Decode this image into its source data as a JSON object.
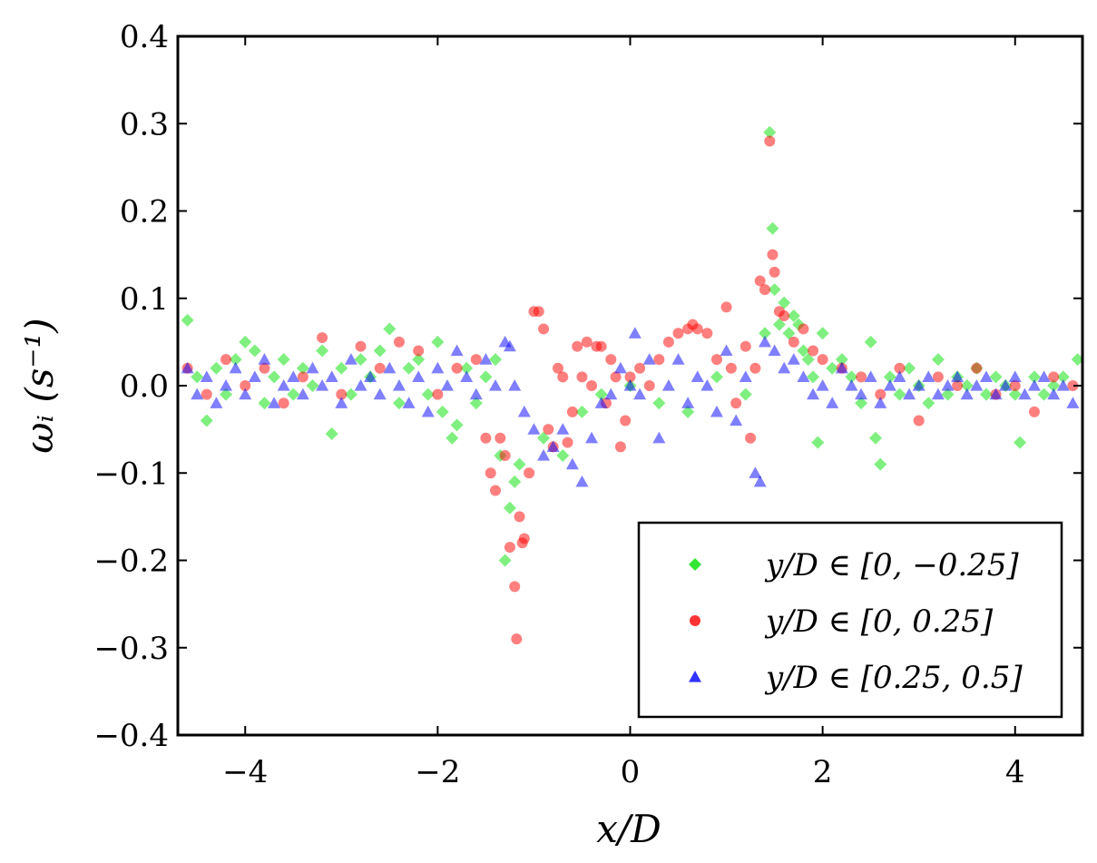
{
  "chart_data": {
    "type": "scatter",
    "title": "",
    "xlabel": "x/D",
    "ylabel": "ωᵢ (s⁻¹)",
    "xlim": [
      -4.7,
      4.7
    ],
    "ylim": [
      -0.4,
      0.4
    ],
    "xticks": [
      -4,
      -2,
      0,
      2,
      4
    ],
    "xtick_labels": [
      "−4",
      "−2",
      "0",
      "2",
      "4"
    ],
    "yticks": [
      -0.4,
      -0.3,
      -0.2,
      -0.1,
      0.0,
      0.1,
      0.2,
      0.3,
      0.4
    ],
    "ytick_labels": [
      "−0.4",
      "−0.3",
      "−0.2",
      "−0.1",
      "0.0",
      "0.1",
      "0.2",
      "0.3",
      "0.4"
    ],
    "grid": false,
    "legend_position": "bottom-right",
    "series": [
      {
        "name": "y/D ∈ [0, −0.25]",
        "marker": "diamond",
        "color": "#00e000",
        "points": [
          [
            -4.6,
            0.075
          ],
          [
            -4.5,
            0.01
          ],
          [
            -4.4,
            -0.04
          ],
          [
            -4.3,
            0.02
          ],
          [
            -4.2,
            -0.01
          ],
          [
            -4.1,
            0.03
          ],
          [
            -4.0,
            0.05
          ],
          [
            -3.9,
            0.04
          ],
          [
            -3.8,
            -0.02
          ],
          [
            -3.7,
            0.01
          ],
          [
            -3.6,
            0.03
          ],
          [
            -3.5,
            -0.01
          ],
          [
            -3.4,
            0.02
          ],
          [
            -3.3,
            0.0
          ],
          [
            -3.2,
            0.04
          ],
          [
            -3.1,
            -0.055
          ],
          [
            -3.0,
            0.02
          ],
          [
            -2.9,
            -0.01
          ],
          [
            -2.8,
            0.03
          ],
          [
            -2.7,
            0.01
          ],
          [
            -2.6,
            0.04
          ],
          [
            -2.5,
            0.065
          ],
          [
            -2.4,
            -0.02
          ],
          [
            -2.3,
            0.02
          ],
          [
            -2.2,
            0.03
          ],
          [
            -2.1,
            -0.01
          ],
          [
            -2.0,
            0.05
          ],
          [
            -1.95,
            -0.03
          ],
          [
            -1.85,
            -0.06
          ],
          [
            -1.8,
            -0.045
          ],
          [
            -1.7,
            0.02
          ],
          [
            -1.6,
            -0.02
          ],
          [
            -1.5,
            0.01
          ],
          [
            -1.4,
            0.03
          ],
          [
            -1.35,
            -0.08
          ],
          [
            -1.3,
            -0.2
          ],
          [
            -1.25,
            -0.14
          ],
          [
            -1.2,
            -0.11
          ],
          [
            -1.15,
            -0.09
          ],
          [
            -0.9,
            -0.06
          ],
          [
            -0.7,
            -0.08
          ],
          [
            -0.5,
            -0.03
          ],
          [
            -0.3,
            -0.01
          ],
          [
            0.0,
            0.0
          ],
          [
            0.3,
            -0.02
          ],
          [
            0.6,
            -0.03
          ],
          [
            0.9,
            0.01
          ],
          [
            1.2,
            -0.01
          ],
          [
            1.4,
            0.06
          ],
          [
            1.45,
            0.29
          ],
          [
            1.48,
            0.18
          ],
          [
            1.5,
            0.11
          ],
          [
            1.55,
            0.07
          ],
          [
            1.6,
            0.095
          ],
          [
            1.65,
            0.06
          ],
          [
            1.7,
            0.08
          ],
          [
            1.75,
            0.07
          ],
          [
            1.8,
            0.04
          ],
          [
            1.85,
            0.03
          ],
          [
            1.9,
            0.01
          ],
          [
            1.95,
            -0.065
          ],
          [
            2.0,
            0.06
          ],
          [
            2.1,
            0.02
          ],
          [
            2.2,
            0.03
          ],
          [
            2.3,
            0.01
          ],
          [
            2.4,
            -0.02
          ],
          [
            2.5,
            0.05
          ],
          [
            2.55,
            -0.06
          ],
          [
            2.6,
            -0.09
          ],
          [
            2.7,
            0.01
          ],
          [
            2.8,
            -0.01
          ],
          [
            2.9,
            0.02
          ],
          [
            3.0,
            0.0
          ],
          [
            3.1,
            -0.02
          ],
          [
            3.2,
            0.03
          ],
          [
            3.3,
            -0.01
          ],
          [
            3.4,
            0.01
          ],
          [
            3.5,
            0.0
          ],
          [
            3.6,
            0.02
          ],
          [
            3.7,
            -0.01
          ],
          [
            3.8,
            0.01
          ],
          [
            3.9,
            0.0
          ],
          [
            4.0,
            -0.01
          ],
          [
            4.05,
            -0.065
          ],
          [
            4.2,
            0.01
          ],
          [
            4.3,
            -0.01
          ],
          [
            4.4,
            0.0
          ],
          [
            4.5,
            0.01
          ],
          [
            4.65,
            0.03
          ]
        ]
      },
      {
        "name": "y/D ∈ [0, 0.25]",
        "marker": "circle",
        "color": "#ff0000",
        "points": [
          [
            -4.6,
            0.02
          ],
          [
            -4.4,
            -0.01
          ],
          [
            -4.2,
            0.03
          ],
          [
            -4.0,
            0.0
          ],
          [
            -3.8,
            0.02
          ],
          [
            -3.6,
            -0.02
          ],
          [
            -3.4,
            0.01
          ],
          [
            -3.2,
            0.055
          ],
          [
            -3.0,
            -0.01
          ],
          [
            -2.8,
            0.045
          ],
          [
            -2.6,
            0.02
          ],
          [
            -2.4,
            0.05
          ],
          [
            -2.2,
            0.04
          ],
          [
            -2.0,
            -0.01
          ],
          [
            -1.8,
            0.02
          ],
          [
            -1.6,
            0.03
          ],
          [
            -1.5,
            -0.06
          ],
          [
            -1.45,
            -0.1
          ],
          [
            -1.4,
            -0.12
          ],
          [
            -1.35,
            -0.06
          ],
          [
            -1.3,
            -0.08
          ],
          [
            -1.25,
            -0.185
          ],
          [
            -1.2,
            -0.23
          ],
          [
            -1.18,
            -0.29
          ],
          [
            -1.15,
            -0.15
          ],
          [
            -1.12,
            -0.18
          ],
          [
            -1.1,
            -0.175
          ],
          [
            -1.05,
            -0.1
          ],
          [
            -1.0,
            0.085
          ],
          [
            -0.95,
            0.085
          ],
          [
            -0.9,
            0.065
          ],
          [
            -0.85,
            -0.05
          ],
          [
            -0.8,
            -0.07
          ],
          [
            -0.75,
            0.02
          ],
          [
            -0.7,
            0.01
          ],
          [
            -0.65,
            -0.065
          ],
          [
            -0.6,
            -0.03
          ],
          [
            -0.55,
            0.045
          ],
          [
            -0.5,
            0.01
          ],
          [
            -0.45,
            0.05
          ],
          [
            -0.4,
            0.0
          ],
          [
            -0.35,
            0.045
          ],
          [
            -0.3,
            0.045
          ],
          [
            -0.25,
            -0.02
          ],
          [
            -0.2,
            0.03
          ],
          [
            -0.15,
            0.01
          ],
          [
            -0.1,
            -0.07
          ],
          [
            -0.05,
            -0.04
          ],
          [
            0.0,
            0.01
          ],
          [
            0.1,
            0.02
          ],
          [
            0.2,
            0.0
          ],
          [
            0.3,
            0.03
          ],
          [
            0.4,
            0.05
          ],
          [
            0.5,
            0.06
          ],
          [
            0.6,
            0.065
          ],
          [
            0.65,
            0.07
          ],
          [
            0.7,
            0.065
          ],
          [
            0.8,
            0.06
          ],
          [
            0.9,
            0.03
          ],
          [
            1.0,
            0.09
          ],
          [
            1.05,
            0.02
          ],
          [
            1.1,
            -0.02
          ],
          [
            1.2,
            0.045
          ],
          [
            1.25,
            -0.06
          ],
          [
            1.3,
            0.02
          ],
          [
            1.35,
            0.12
          ],
          [
            1.4,
            0.11
          ],
          [
            1.45,
            0.28
          ],
          [
            1.48,
            0.15
          ],
          [
            1.5,
            0.13
          ],
          [
            1.55,
            0.085
          ],
          [
            1.6,
            0.08
          ],
          [
            1.7,
            0.05
          ],
          [
            1.8,
            0.065
          ],
          [
            1.9,
            0.04
          ],
          [
            2.0,
            0.03
          ],
          [
            2.2,
            0.02
          ],
          [
            2.4,
            0.01
          ],
          [
            2.6,
            -0.01
          ],
          [
            2.8,
            0.02
          ],
          [
            3.0,
            -0.04
          ],
          [
            3.2,
            0.01
          ],
          [
            3.4,
            0.0
          ],
          [
            3.6,
            0.02
          ],
          [
            3.8,
            -0.01
          ],
          [
            4.0,
            0.0
          ],
          [
            4.2,
            -0.03
          ],
          [
            4.4,
            0.01
          ],
          [
            4.6,
            0.0
          ]
        ]
      },
      {
        "name": "y/D ∈ [0.25, 0.5]",
        "marker": "triangle",
        "color": "#0000ff",
        "points": [
          [
            -4.6,
            0.02
          ],
          [
            -4.5,
            -0.01
          ],
          [
            -4.4,
            0.01
          ],
          [
            -4.3,
            -0.02
          ],
          [
            -4.2,
            0.0
          ],
          [
            -4.1,
            0.02
          ],
          [
            -4.0,
            -0.01
          ],
          [
            -3.9,
            0.01
          ],
          [
            -3.8,
            0.03
          ],
          [
            -3.7,
            -0.02
          ],
          [
            -3.6,
            0.0
          ],
          [
            -3.5,
            0.01
          ],
          [
            -3.4,
            -0.01
          ],
          [
            -3.3,
            0.02
          ],
          [
            -3.2,
            0.0
          ],
          [
            -3.1,
            0.01
          ],
          [
            -3.0,
            -0.02
          ],
          [
            -2.9,
            0.03
          ],
          [
            -2.8,
            0.0
          ],
          [
            -2.7,
            0.01
          ],
          [
            -2.6,
            -0.01
          ],
          [
            -2.5,
            0.02
          ],
          [
            -2.4,
            0.0
          ],
          [
            -2.3,
            -0.02
          ],
          [
            -2.2,
            0.01
          ],
          [
            -2.1,
            -0.03
          ],
          [
            -2.0,
            0.02
          ],
          [
            -1.9,
            0.0
          ],
          [
            -1.8,
            0.04
          ],
          [
            -1.7,
            0.01
          ],
          [
            -1.6,
            -0.01
          ],
          [
            -1.5,
            0.03
          ],
          [
            -1.4,
            0.0
          ],
          [
            -1.3,
            0.05
          ],
          [
            -1.25,
            0.045
          ],
          [
            -1.2,
            0.0
          ],
          [
            -1.1,
            -0.03
          ],
          [
            -1.0,
            -0.05
          ],
          [
            -0.9,
            -0.08
          ],
          [
            -0.8,
            -0.07
          ],
          [
            -0.7,
            -0.05
          ],
          [
            -0.6,
            -0.09
          ],
          [
            -0.5,
            -0.11
          ],
          [
            -0.4,
            -0.06
          ],
          [
            -0.3,
            -0.02
          ],
          [
            -0.2,
            -0.01
          ],
          [
            -0.1,
            0.02
          ],
          [
            0.0,
            0.0
          ],
          [
            0.05,
            0.06
          ],
          [
            0.1,
            -0.01
          ],
          [
            0.2,
            0.03
          ],
          [
            0.3,
            -0.06
          ],
          [
            0.4,
            0.0
          ],
          [
            0.5,
            0.03
          ],
          [
            0.6,
            -0.02
          ],
          [
            0.7,
            0.01
          ],
          [
            0.8,
            0.0
          ],
          [
            0.9,
            -0.03
          ],
          [
            1.0,
            0.04
          ],
          [
            1.1,
            -0.04
          ],
          [
            1.2,
            0.01
          ],
          [
            1.3,
            -0.1
          ],
          [
            1.35,
            -0.11
          ],
          [
            1.4,
            0.05
          ],
          [
            1.5,
            0.04
          ],
          [
            1.6,
            0.02
          ],
          [
            1.7,
            0.03
          ],
          [
            1.8,
            0.01
          ],
          [
            1.9,
            -0.01
          ],
          [
            2.0,
            0.0
          ],
          [
            2.1,
            -0.02
          ],
          [
            2.2,
            0.02
          ],
          [
            2.3,
            0.0
          ],
          [
            2.4,
            -0.01
          ],
          [
            2.5,
            0.01
          ],
          [
            2.6,
            -0.02
          ],
          [
            2.7,
            0.0
          ],
          [
            2.8,
            0.01
          ],
          [
            2.9,
            -0.01
          ],
          [
            3.0,
            0.0
          ],
          [
            3.1,
            0.01
          ],
          [
            3.2,
            -0.01
          ],
          [
            3.3,
            0.0
          ],
          [
            3.4,
            0.01
          ],
          [
            3.5,
            -0.01
          ],
          [
            3.6,
            0.0
          ],
          [
            3.7,
            0.01
          ],
          [
            3.8,
            -0.01
          ],
          [
            3.9,
            0.0
          ],
          [
            4.0,
            0.01
          ],
          [
            4.1,
            -0.01
          ],
          [
            4.2,
            0.0
          ],
          [
            4.3,
            0.01
          ],
          [
            4.4,
            -0.01
          ],
          [
            4.5,
            0.0
          ],
          [
            4.6,
            -0.02
          ]
        ]
      }
    ]
  }
}
